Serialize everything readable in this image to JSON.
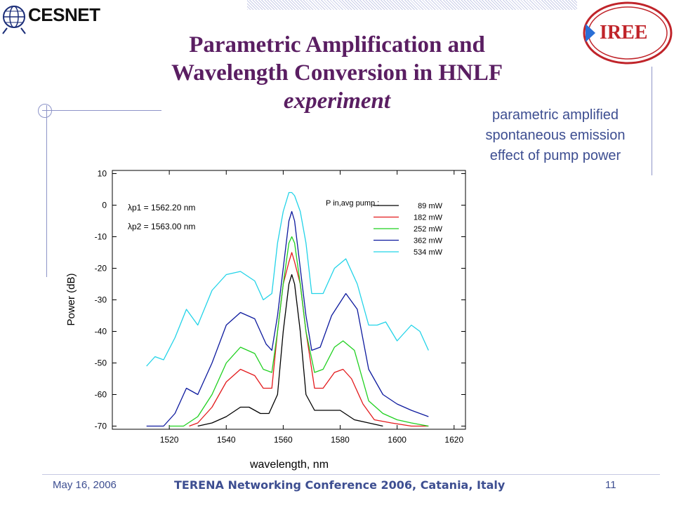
{
  "header": {
    "cesnet_logo_text": "CESNET",
    "iree_logo_text": "IREE"
  },
  "title": {
    "line1": "Parametric Amplification and",
    "line2": "Wavelength Conversion in HNLF",
    "line3": "experiment"
  },
  "side_note": {
    "line1": "parametric amplified",
    "line2": "spontaneous emission",
    "line3": "effect of pump power"
  },
  "footer": {
    "date": "May 16, 2006",
    "conference": "TERENA Networking Conference 2006, Catania, Italy",
    "page": "11"
  },
  "chart_data": {
    "type": "line",
    "xlabel": "wavelength, nm",
    "ylabel": "Power (dB)",
    "xlim": [
      1500,
      1624
    ],
    "ylim": [
      -71,
      11
    ],
    "xticks": [
      1520,
      1540,
      1560,
      1580,
      1600,
      1620
    ],
    "yticks": [
      10,
      0,
      -10,
      -20,
      -30,
      -40,
      -50,
      -60,
      -70
    ],
    "annotations": {
      "lambda1": "λp1 = 1562.20 nm",
      "lambda2": "λp2 = 1563.00 nm",
      "pump_label": "P in,avg pump :"
    },
    "legend_position": "top-right",
    "series": [
      {
        "name": "89 mW",
        "color": "#000000",
        "x": [
          1530,
          1535,
          1540,
          1545,
          1548,
          1552,
          1555,
          1558,
          1560,
          1562,
          1563,
          1564,
          1566,
          1568,
          1571,
          1575,
          1580,
          1585,
          1590,
          1595
        ],
        "y": [
          -70,
          -69,
          -67,
          -64,
          -64,
          -66,
          -66,
          -60,
          -40,
          -25,
          -22,
          -25,
          -40,
          -60,
          -65,
          -65,
          -65,
          -68,
          -69,
          -70
        ]
      },
      {
        "name": "182 mW",
        "color": "#e31a1c",
        "x": [
          1527,
          1530,
          1535,
          1540,
          1545,
          1550,
          1553,
          1556,
          1558,
          1560,
          1562,
          1563,
          1564,
          1566,
          1568,
          1571,
          1574,
          1578,
          1581,
          1584,
          1588,
          1592,
          1598,
          1605,
          1611
        ],
        "y": [
          -70,
          -69,
          -64,
          -56,
          -52,
          -54,
          -58,
          -58,
          -40,
          -25,
          -18,
          -15,
          -18,
          -25,
          -40,
          -58,
          -58,
          -53,
          -52,
          -55,
          -63,
          -68,
          -69,
          -70,
          -70
        ]
      },
      {
        "name": "252 mW",
        "color": "#1fd01f",
        "x": [
          1520,
          1525,
          1530,
          1535,
          1540,
          1545,
          1550,
          1553,
          1556,
          1558,
          1560,
          1562,
          1563,
          1564,
          1566,
          1568,
          1571,
          1574,
          1578,
          1581,
          1585,
          1590,
          1595,
          1600,
          1605,
          1611
        ],
        "y": [
          -70,
          -70,
          -67,
          -60,
          -50,
          -45,
          -47,
          -52,
          -53,
          -40,
          -25,
          -12,
          -10,
          -12,
          -25,
          -40,
          -53,
          -52,
          -45,
          -43,
          -46,
          -62,
          -66,
          -68,
          -69,
          -70
        ]
      },
      {
        "name": "362 mW",
        "color": "#0d1a9e",
        "x": [
          1512,
          1518,
          1522,
          1526,
          1530,
          1535,
          1540,
          1545,
          1550,
          1554,
          1556,
          1558,
          1560,
          1562,
          1563,
          1564,
          1566,
          1568,
          1570,
          1573,
          1577,
          1582,
          1586,
          1590,
          1595,
          1600,
          1605,
          1611
        ],
        "y": [
          -70,
          -70,
          -66,
          -58,
          -60,
          -50,
          -38,
          -34,
          -36,
          -44,
          -46,
          -35,
          -20,
          -5,
          -2,
          -5,
          -20,
          -35,
          -46,
          -45,
          -35,
          -28,
          -33,
          -52,
          -60,
          -63,
          -65,
          -67
        ]
      },
      {
        "name": "534 mW",
        "color": "#22d3e8",
        "x": [
          1512,
          1515,
          1518,
          1522,
          1526,
          1530,
          1535,
          1540,
          1545,
          1550,
          1553,
          1556,
          1558,
          1560,
          1562,
          1563,
          1564,
          1566,
          1568,
          1570,
          1574,
          1578,
          1582,
          1586,
          1590,
          1593,
          1596,
          1600,
          1605,
          1608,
          1611
        ],
        "y": [
          -51,
          -48,
          -49,
          -42,
          -33,
          -38,
          -27,
          -22,
          -21,
          -24,
          -30,
          -28,
          -12,
          -2,
          4,
          4,
          3,
          -2,
          -12,
          -28,
          -28,
          -20,
          -17,
          -25,
          -38,
          -38,
          -37,
          -43,
          -38,
          -40,
          -46
        ]
      }
    ]
  }
}
